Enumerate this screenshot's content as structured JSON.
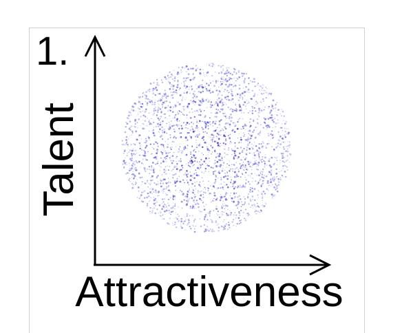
{
  "panel_number": "1.",
  "y_axis_label": "Talent",
  "x_axis_label": "Attractiveness",
  "colors": {
    "axes": "#000000",
    "points": "#1a1acc",
    "frame": "#cfcfcf"
  },
  "scatter": {
    "distribution": "uniform-disc",
    "x_center": 0.5,
    "y_center": 0.5,
    "radius": 0.38
  }
}
